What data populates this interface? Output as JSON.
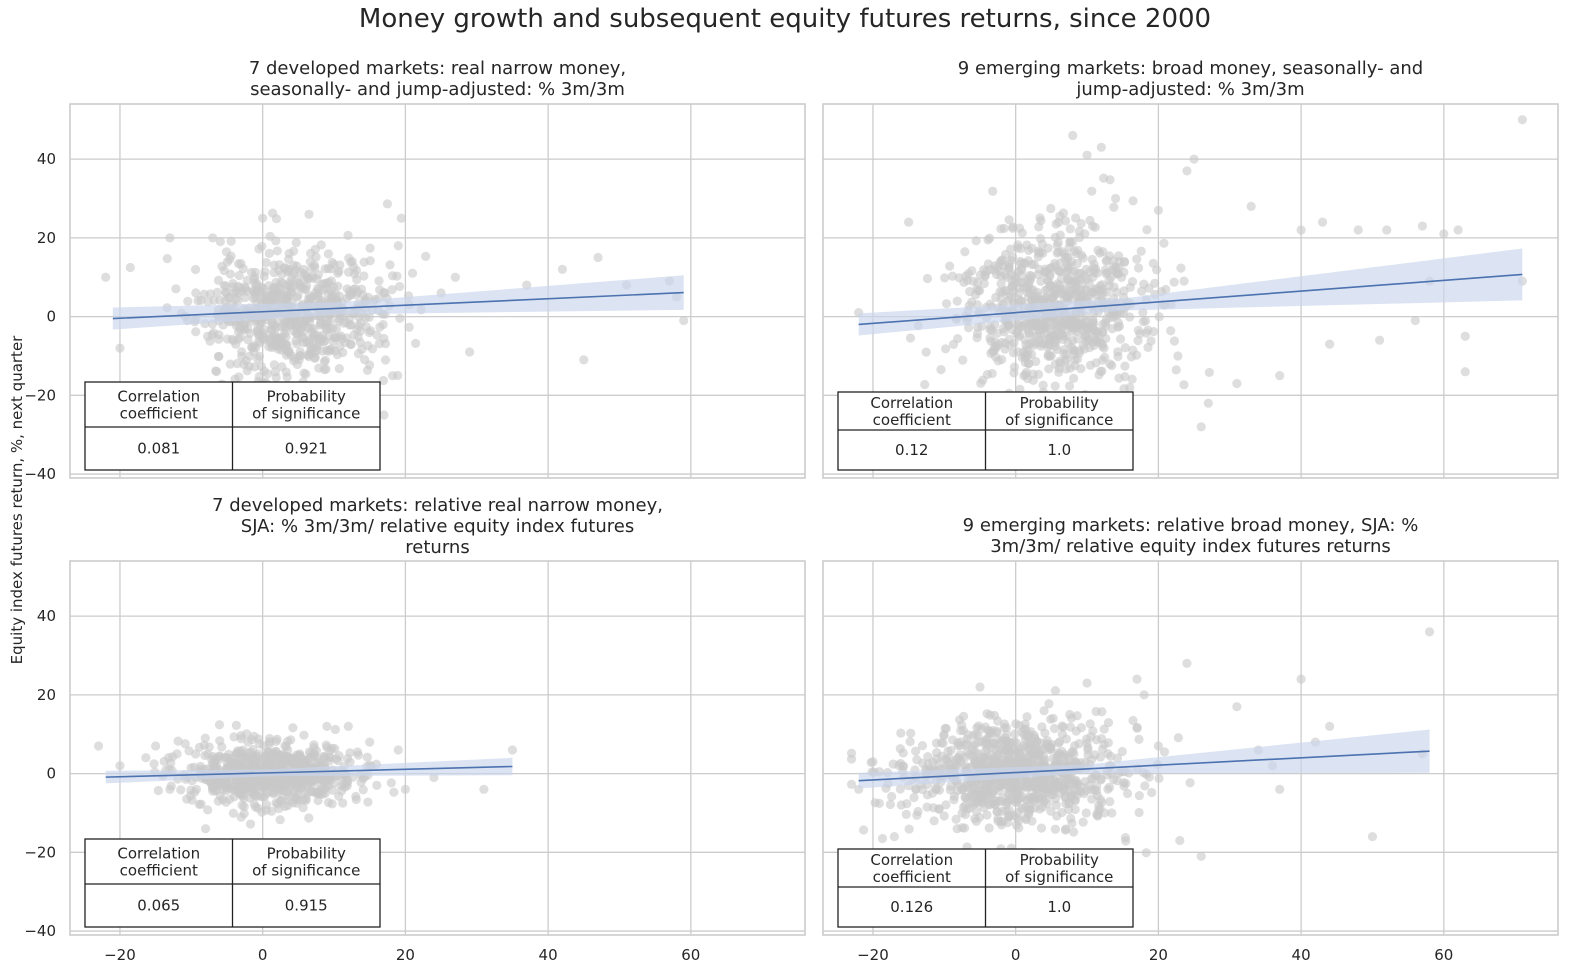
{
  "title": "Money growth and subsequent equity futures returns, since 2000",
  "shared_ylabel": "Equity index futures return, %, next quarter",
  "colors": {
    "points": "#c8c8c8",
    "line": "#4c72b0",
    "band": "#c9d6ec",
    "grid": "#cccccc"
  },
  "chart_data": [
    {
      "type": "scatter",
      "title_lines": [
        "7 developed markets: real narrow money,",
        "seasonally- and jump-adjusted: % 3m/3m"
      ],
      "xlim": [
        -27,
        76
      ],
      "ylim": [
        -41,
        54
      ],
      "xticks": [
        -20,
        0,
        20,
        40,
        60
      ],
      "yticks": [
        -40,
        -20,
        0,
        20,
        40
      ],
      "show_xtick_labels": false,
      "show_ytick_labels": true,
      "grid": true,
      "regression": {
        "x": [
          -21,
          59
        ],
        "y": [
          -0.5,
          6.1
        ],
        "band_half_width": [
          2.8,
          4.4
        ]
      },
      "cloud": {
        "n": 720,
        "cx": 4,
        "cy": 1,
        "sx": 6.5,
        "sy": 8,
        "seed": 11
      },
      "outliers": [
        [
          -22,
          10
        ],
        [
          -20,
          -8
        ],
        [
          -13,
          20
        ],
        [
          -7,
          20
        ],
        [
          0,
          25
        ],
        [
          19,
          18
        ],
        [
          27,
          10
        ],
        [
          37,
          8
        ],
        [
          42,
          12
        ],
        [
          47,
          15
        ],
        [
          45,
          -11
        ],
        [
          51,
          8
        ],
        [
          57,
          9
        ],
        [
          58,
          5
        ],
        [
          59,
          -1
        ],
        [
          29,
          -9
        ],
        [
          17,
          -25
        ],
        [
          13,
          -22
        ],
        [
          21,
          11
        ],
        [
          25,
          6
        ]
      ],
      "stats_table": {
        "headers": [
          [
            "Correlation",
            "coefficient"
          ],
          [
            "Probability",
            "of significance"
          ]
        ],
        "values": [
          "0.081",
          "0.921"
        ]
      }
    },
    {
      "type": "scatter",
      "title_lines": [
        "9 emerging markets: broad money, seasonally- and",
        "jump-adjusted: % 3m/3m"
      ],
      "xlim": [
        -27,
        76
      ],
      "ylim": [
        -41,
        54
      ],
      "xticks": [
        -20,
        0,
        20,
        40,
        60
      ],
      "yticks": [
        -40,
        -20,
        0,
        20,
        40
      ],
      "show_xtick_labels": false,
      "show_ytick_labels": false,
      "grid": true,
      "regression": {
        "x": [
          -22,
          71
        ],
        "y": [
          -2,
          10.7
        ],
        "band_half_width": [
          2.8,
          6.6
        ]
      },
      "cloud": {
        "n": 780,
        "cx": 5,
        "cy": 2,
        "sx": 6.5,
        "sy": 10,
        "seed": 23
      },
      "outliers": [
        [
          -22,
          1
        ],
        [
          -15,
          24
        ],
        [
          8,
          46
        ],
        [
          10,
          41
        ],
        [
          12,
          43
        ],
        [
          14,
          30
        ],
        [
          24,
          37
        ],
        [
          25,
          40
        ],
        [
          33,
          28
        ],
        [
          43,
          24
        ],
        [
          52,
          22
        ],
        [
          57,
          23
        ],
        [
          60,
          21
        ],
        [
          62,
          22
        ],
        [
          71,
          50
        ],
        [
          71,
          9
        ],
        [
          63,
          -5
        ],
        [
          63,
          -14
        ],
        [
          58,
          9
        ],
        [
          56,
          -1
        ],
        [
          51,
          -6
        ],
        [
          44,
          -7
        ],
        [
          37,
          -15
        ],
        [
          31,
          -17
        ],
        [
          26,
          -28
        ],
        [
          27,
          -22
        ],
        [
          20,
          27
        ],
        [
          16,
          -18
        ],
        [
          40,
          22
        ],
        [
          48,
          22
        ]
      ],
      "stats_table": {
        "headers": [
          [
            "Correlation",
            "coefficient"
          ],
          [
            "Probability",
            "of significance"
          ]
        ],
        "values": [
          "0.12",
          "1.0"
        ]
      }
    },
    {
      "type": "scatter",
      "title_lines": [
        "7 developed markets: relative real narrow money,",
        "SJA: % 3m/3m/ relative equity index futures",
        "returns"
      ],
      "xlim": [
        -27,
        76
      ],
      "ylim": [
        -41,
        54
      ],
      "xticks": [
        -20,
        0,
        20,
        40,
        60
      ],
      "yticks": [
        -40,
        -20,
        0,
        20,
        40
      ],
      "show_xtick_labels": true,
      "show_ytick_labels": true,
      "grid": true,
      "regression": {
        "x": [
          -22,
          35
        ],
        "y": [
          -0.9,
          1.8
        ],
        "band_half_width": [
          1.6,
          2.2
        ]
      },
      "cloud": {
        "n": 720,
        "cx": 1,
        "cy": 0,
        "sx": 6,
        "sy": 4,
        "seed": 37
      },
      "outliers": [
        [
          -23,
          7
        ],
        [
          -20,
          2
        ],
        [
          -15,
          7
        ],
        [
          -13,
          -4
        ],
        [
          -8,
          -14
        ],
        [
          9,
          12
        ],
        [
          12,
          12
        ],
        [
          15,
          8
        ],
        [
          19,
          6
        ],
        [
          20,
          -4
        ],
        [
          24,
          -1
        ],
        [
          31,
          -4
        ],
        [
          35,
          6
        ],
        [
          -12,
          5
        ],
        [
          16,
          -3
        ]
      ],
      "stats_table": {
        "headers": [
          [
            "Correlation",
            "coefficient"
          ],
          [
            "Probability",
            "of significance"
          ]
        ],
        "values": [
          "0.065",
          "0.915"
        ]
      }
    },
    {
      "type": "scatter",
      "title_lines": [
        "9 emerging markets: relative broad money, SJA: %",
        "3m/3m/ relative equity index futures returns"
      ],
      "xlim": [
        -27,
        76
      ],
      "ylim": [
        -41,
        54
      ],
      "xticks": [
        -20,
        0,
        20,
        40,
        60
      ],
      "yticks": [
        -40,
        -20,
        0,
        20,
        40
      ],
      "show_xtick_labels": true,
      "show_ytick_labels": false,
      "grid": true,
      "regression": {
        "x": [
          -22,
          58
        ],
        "y": [
          -1.8,
          5.7
        ],
        "band_half_width": [
          2.0,
          5.5
        ]
      },
      "cloud": {
        "n": 900,
        "cx": 0,
        "cy": 0,
        "sx": 7.5,
        "sy": 6.5,
        "seed": 53
      },
      "outliers": [
        [
          -22,
          -4
        ],
        [
          -20,
          3
        ],
        [
          -17,
          -16
        ],
        [
          -5,
          22
        ],
        [
          10,
          23
        ],
        [
          17,
          24
        ],
        [
          18,
          20
        ],
        [
          24,
          28
        ],
        [
          31,
          17
        ],
        [
          34,
          6
        ],
        [
          37,
          -4
        ],
        [
          40,
          24
        ],
        [
          42,
          8
        ],
        [
          44,
          12
        ],
        [
          50,
          -16
        ],
        [
          57,
          5
        ],
        [
          58,
          36
        ],
        [
          26,
          -21
        ],
        [
          23,
          -17
        ],
        [
          20,
          7
        ],
        [
          36,
          2
        ]
      ],
      "stats_table": {
        "headers": [
          [
            "Correlation",
            "coefficient"
          ],
          [
            "Probability",
            "of significance"
          ]
        ],
        "values": [
          "0.126",
          "1.0"
        ]
      }
    }
  ]
}
